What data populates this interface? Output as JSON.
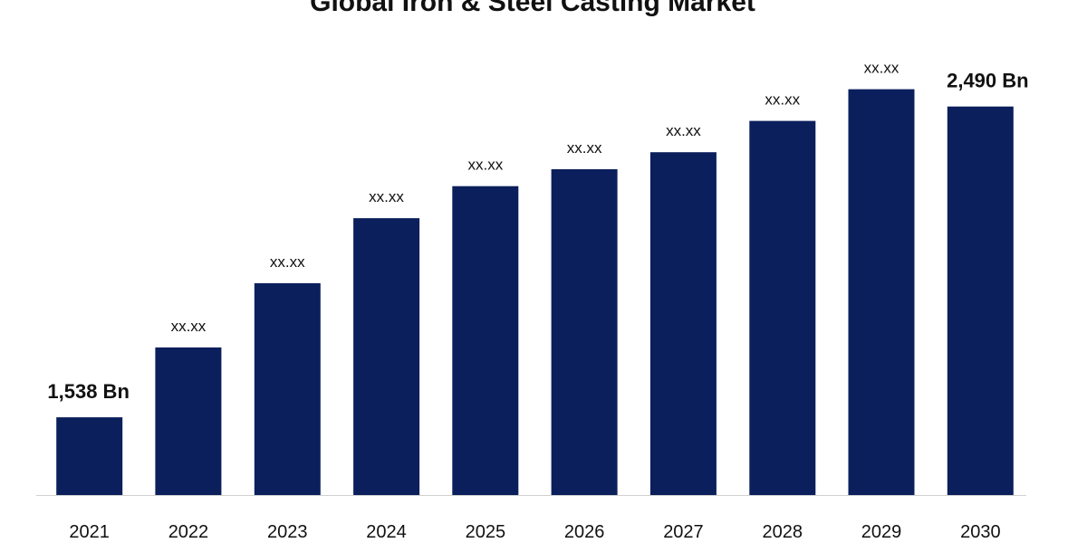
{
  "chart_data": {
    "type": "bar",
    "title": "Global Iron & Steel Casting Market",
    "xlabel": "",
    "ylabel": "",
    "categories": [
      "2021",
      "2022",
      "2023",
      "2024",
      "2025",
      "2026",
      "2027",
      "2028",
      "2029",
      "2030"
    ],
    "values": [
      1538,
      1752,
      1949,
      2148,
      2246,
      2298,
      2350,
      2446,
      2543,
      2490
    ],
    "data_labels": [
      "1,538 Bn",
      "xx.xx",
      "xx.xx",
      "xx.xx",
      "xx.xx",
      "xx.xx",
      "xx.xx",
      "xx.xx",
      "xx.xx",
      "2,490 Bn"
    ],
    "ylim": [
      1300,
      2650
    ],
    "grid": false,
    "legend": "none",
    "bar_color": "#0b1f5c"
  }
}
